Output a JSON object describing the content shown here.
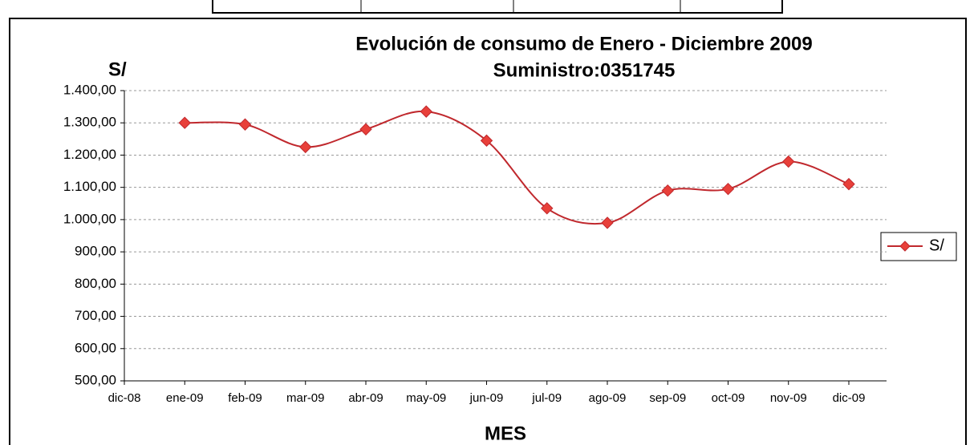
{
  "chart_data": {
    "type": "line",
    "title": "Evolución de consumo de Enero - Diciembre 2009",
    "subtitle": "Suministro:0351745",
    "y_label": "S/",
    "x_label": "MES",
    "categories": [
      "dic-08",
      "ene-09",
      "feb-09",
      "mar-09",
      "abr-09",
      "may-09",
      "jun-09",
      "jul-09",
      "ago-09",
      "sep-09",
      "oct-09",
      "nov-09",
      "dic-09"
    ],
    "series": [
      {
        "name": "S/",
        "color": "#c0282d",
        "marker_color": "#e8403a",
        "values": [
          null,
          1300,
          1295,
          1225,
          1280,
          1335,
          1245,
          1035,
          990,
          1090,
          1095,
          1180,
          1110
        ]
      }
    ],
    "ylim": [
      500,
      1400
    ],
    "yticks": [
      {
        "value": 500,
        "label": "500,00"
      },
      {
        "value": 600,
        "label": "600,00"
      },
      {
        "value": 700,
        "label": "700,00"
      },
      {
        "value": 800,
        "label": "800,00"
      },
      {
        "value": 900,
        "label": "900,00"
      },
      {
        "value": 1000,
        "label": "1.000,00"
      },
      {
        "value": 1100,
        "label": "1.100,00"
      },
      {
        "value": 1200,
        "label": "1.200,00"
      },
      {
        "value": 1300,
        "label": "1.300,00"
      },
      {
        "value": 1400,
        "label": "1.400,00"
      }
    ],
    "grid": true,
    "smooth": true,
    "legend": "right"
  }
}
